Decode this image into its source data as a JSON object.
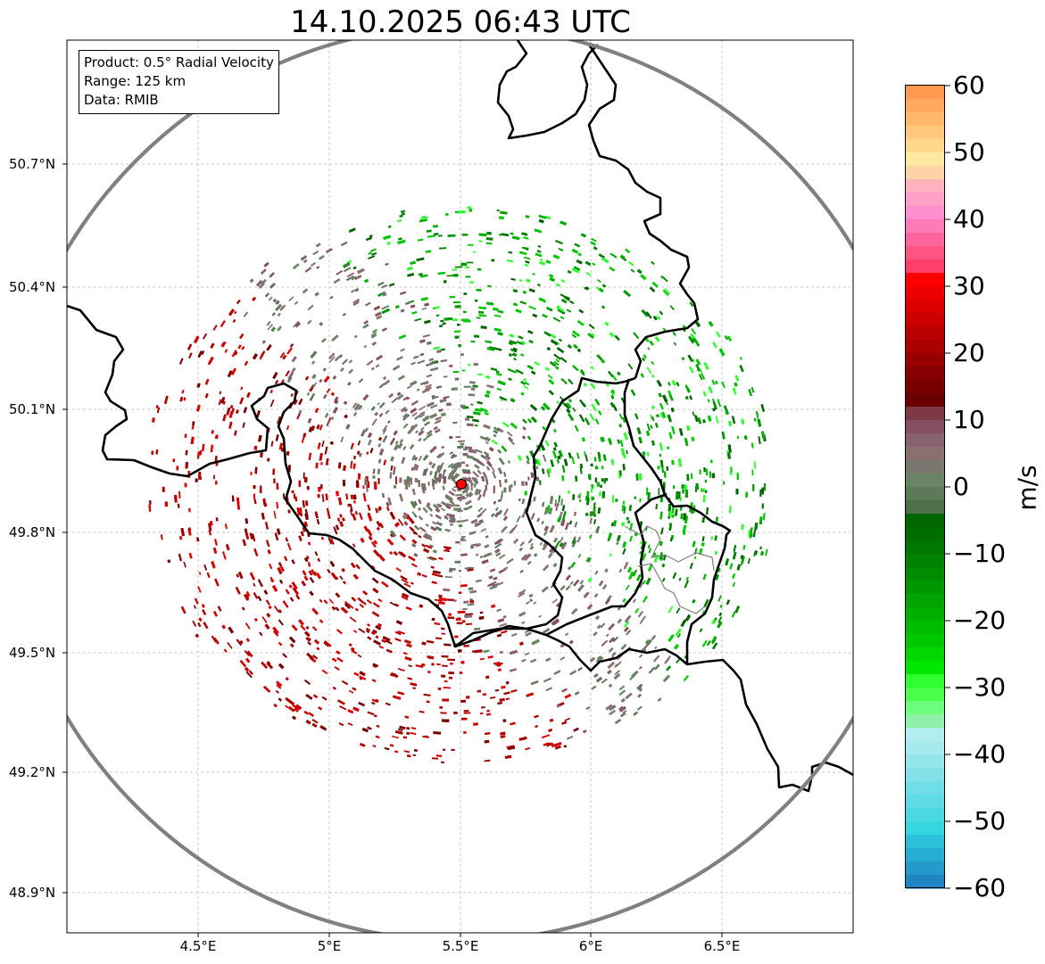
{
  "title": "14.10.2025 06:43 UTC",
  "info_box": {
    "product": "Product: 0.5° Radial Velocity",
    "range": "Range: 125 km",
    "data_source": "Data: RMIB"
  },
  "lat_ticks": [
    "50.7°N",
    "50.4°N",
    "50.1°N",
    "49.8°N",
    "49.5°N",
    "49.2°N",
    "48.9°N"
  ],
  "lon_ticks": [
    "4.5°E",
    "5°E",
    "5.5°E",
    "6°E",
    "6.5°E"
  ],
  "colorbar": {
    "unit": "m/s",
    "min": -60,
    "max": 60,
    "tick_labels": [
      "60",
      "50",
      "40",
      "30",
      "20",
      "10",
      "0",
      "−10",
      "−20",
      "−30",
      "−40",
      "−50",
      "−60"
    ],
    "colors_top_to_bottom": [
      "#ff9a50",
      "#ffa95e",
      "#ffb86c",
      "#ffc77c",
      "#ffd88e",
      "#ffe9a0",
      "#ffd3a6",
      "#ffb3bd",
      "#ffa0c8",
      "#ff8fd0",
      "#ff7ab8",
      "#ff659d",
      "#ff5382",
      "#ff4066",
      "#ff0000",
      "#ee0000",
      "#dd0000",
      "#cc0000",
      "#bb0000",
      "#aa0000",
      "#990000",
      "#880000",
      "#770000",
      "#6a0000",
      "#7d3a45",
      "#845060",
      "#886270",
      "#8a7070",
      "#7b7670",
      "#6a8466",
      "#5c7a58",
      "#4d6f4c",
      "#006400",
      "#006d00",
      "#007700",
      "#008200",
      "#008c00",
      "#009800",
      "#00a400",
      "#00b000",
      "#00bc00",
      "#00c800",
      "#00d800",
      "#00e800",
      "#2eff2e",
      "#4dff4d",
      "#6cff7c",
      "#90f0a8",
      "#b0eef0",
      "#a4eaee",
      "#94e6ea",
      "#82e2e8",
      "#70dee6",
      "#5edbe4",
      "#4cd8e2",
      "#36d6e0",
      "#2bc0d8",
      "#26aed2",
      "#2598cc",
      "#2183c4"
    ]
  },
  "radar": {
    "site_marker_color": "#ff0000",
    "range_ring_color": "#808080",
    "palette": {
      "inbound": [
        "#00b000",
        "#00c800",
        "#009800",
        "#008200",
        "#006400",
        "#2eff2e"
      ],
      "outbound": [
        "#990000",
        "#aa0000",
        "#bb0000",
        "#cc0000",
        "#770000",
        "#dd0000"
      ],
      "near_zero": [
        "#886270",
        "#7b7670",
        "#8a7070",
        "#6a8466",
        "#845060",
        "#5c7a58"
      ]
    }
  }
}
